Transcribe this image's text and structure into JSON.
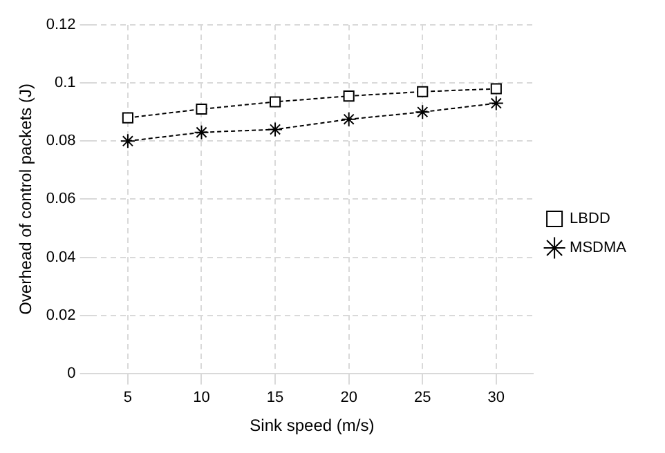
{
  "chart_data": {
    "type": "line",
    "xlabel": "Sink speed (m/s)",
    "ylabel": "Overhead of control packets (J)",
    "categories": [
      "5",
      "10",
      "15",
      "20",
      "25",
      "30"
    ],
    "series": [
      {
        "name": "LBDD",
        "color": "#000000",
        "marker": "square",
        "values": [
          0.088,
          0.091,
          0.0935,
          0.0955,
          0.097,
          0.098
        ]
      },
      {
        "name": "MSDMA",
        "color": "#000000",
        "marker": "cross",
        "values": [
          0.08,
          0.083,
          0.084,
          0.0875,
          0.09,
          0.093
        ]
      }
    ],
    "ylim": [
      0,
      0.12
    ],
    "yticks": [
      0,
      0.02,
      0.04,
      0.06,
      0.08,
      0.1,
      0.12
    ],
    "grid": true,
    "legend": "right",
    "line_style": "dashed"
  }
}
